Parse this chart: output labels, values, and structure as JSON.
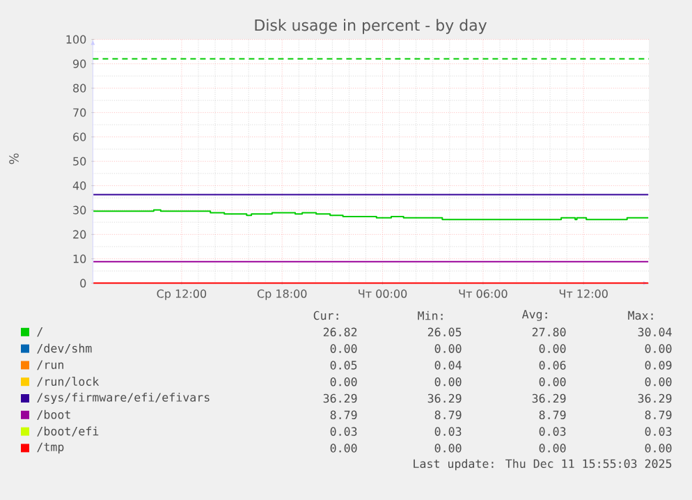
{
  "chart_data": {
    "type": "step",
    "title": "Disk usage in percent - by day",
    "ylabel": "%",
    "xlim": [
      "2025-12-10T06:42",
      "2025-12-11T15:54"
    ],
    "xticks": [
      {
        "value": "2025-12-10T12:00",
        "label": "Ср 12:00"
      },
      {
        "value": "2025-12-10T18:00",
        "label": "Ср 18:00"
      },
      {
        "value": "2025-12-11T00:00",
        "label": "Чт 00:00"
      },
      {
        "value": "2025-12-11T06:00",
        "label": "Чт 06:00"
      },
      {
        "value": "2025-12-11T12:00",
        "label": "Чт 12:00"
      }
    ],
    "ylim": [
      0,
      100
    ],
    "yticks": [
      0,
      10,
      20,
      30,
      40,
      50,
      60,
      70,
      80,
      90,
      100
    ],
    "grid": true,
    "legend": "bottom",
    "ref_lines": [
      {
        "axis": "y",
        "value": 92,
        "color": "#00cc00",
        "line_style": "dashed"
      }
    ],
    "series": [
      {
        "name": "/",
        "color": "#00cc00",
        "x": [
          "2025-12-10T06:44",
          "2025-12-10T10:20",
          "2025-12-10T10:45",
          "2025-12-10T13:43",
          "2025-12-10T14:33",
          "2025-12-10T15:53",
          "2025-12-10T16:10",
          "2025-12-10T17:24",
          "2025-12-10T18:47",
          "2025-12-10T19:12",
          "2025-12-10T20:02",
          "2025-12-10T20:52",
          "2025-12-10T21:38",
          "2025-12-10T23:38",
          "2025-12-11T00:31",
          "2025-12-11T01:15",
          "2025-12-11T03:34",
          "2025-12-11T10:40",
          "2025-12-11T11:30",
          "2025-12-11T11:36",
          "2025-12-11T12:10",
          "2025-12-11T14:36",
          "2025-12-11T15:52"
        ],
        "values": [
          29.5,
          30.0,
          29.5,
          28.9,
          28.4,
          27.8,
          28.4,
          28.9,
          28.4,
          28.9,
          28.4,
          27.8,
          27.3,
          26.8,
          27.3,
          26.8,
          26.1,
          26.8,
          26.1,
          26.8,
          26.1,
          26.8,
          26.8
        ]
      },
      {
        "name": "/dev/shm",
        "color": "#0066b3",
        "values": [
          null,
          null
        ]
      },
      {
        "name": "/run",
        "color": "#ff8000",
        "values": [
          null,
          null
        ]
      },
      {
        "name": "/run/lock",
        "color": "#ffcc00",
        "values": [
          null,
          null
        ]
      },
      {
        "name": "/sys/firmware/efi/efivars",
        "color": "#330099",
        "x": [
          "2025-12-10T06:44",
          "2025-12-11T15:52"
        ],
        "values": [
          36.3,
          36.3
        ]
      },
      {
        "name": "/boot",
        "color": "#990099",
        "x": [
          "2025-12-10T06:44",
          "2025-12-11T15:52"
        ],
        "values": [
          8.8,
          8.8
        ]
      },
      {
        "name": "/boot/efi",
        "color": "#ccff00",
        "values": [
          null,
          null
        ]
      },
      {
        "name": "/tmp",
        "color": "#ff0000",
        "x": [
          "2025-12-10T06:44",
          "2025-12-11T15:52"
        ],
        "values": [
          0,
          0
        ]
      }
    ],
    "annotations": [
      "Cur:",
      "Min:",
      "Avg:",
      "Max:",
      "26.82",
      "26.05",
      "27.80",
      "30.04",
      "0.00",
      "0.00",
      "0.00",
      "0.00",
      "0.05",
      "0.04",
      "0.06",
      "0.09",
      "0.00",
      "0.00",
      "0.00",
      "0.00",
      "36.29",
      "36.29",
      "36.29",
      "36.29",
      "8.79",
      "8.79",
      "8.79",
      "8.79",
      "0.03",
      "0.03",
      "0.03",
      "0.03",
      "0.00",
      "0.00",
      "0.00",
      "0.00",
      "Last update: Thu Dec 11 15:55:03 2025"
    ]
  }
}
